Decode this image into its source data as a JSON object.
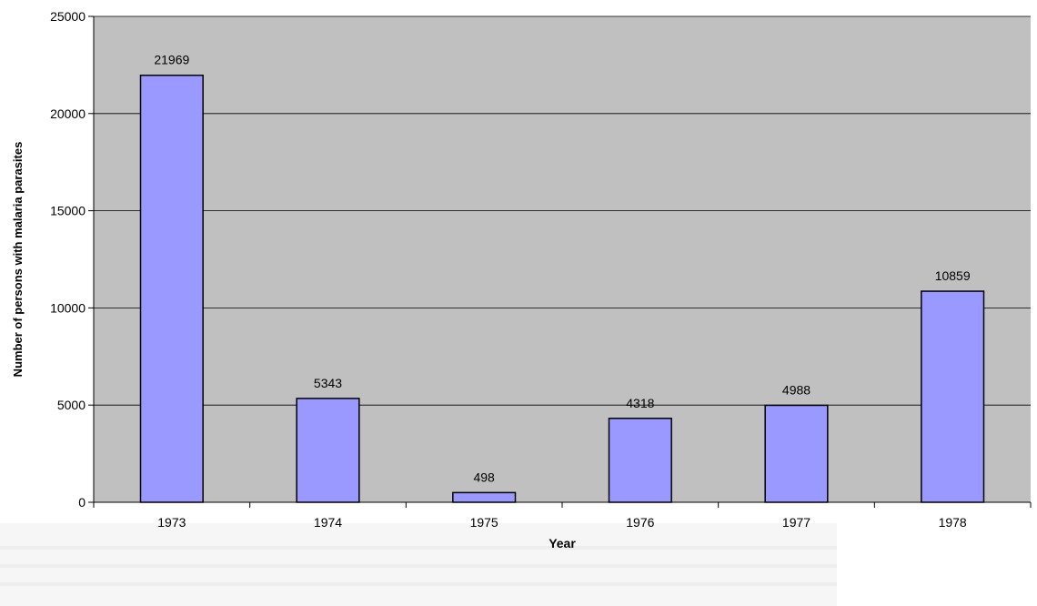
{
  "chart_data": {
    "type": "bar",
    "categories": [
      "1973",
      "1974",
      "1975",
      "1976",
      "1977",
      "1978"
    ],
    "values": [
      21969,
      5343,
      498,
      4318,
      4988,
      10859
    ],
    "data_labels": [
      "21969",
      "5343",
      "498",
      "4318",
      "4988",
      "10859"
    ],
    "title": "",
    "xlabel": "Year",
    "ylabel": "Number of persons with malaria parasites",
    "ylim": [
      0,
      25000
    ],
    "yticks": [
      0,
      5000,
      10000,
      15000,
      20000,
      25000
    ],
    "ytick_labels": [
      "0",
      "5000",
      "10000",
      "15000",
      "20000",
      "25000"
    ],
    "grid": true,
    "legend": "none",
    "colors": {
      "plot_background": "#c0c0c0",
      "bar_fill": "#9999ff",
      "bar_stroke": "#000000",
      "gridline": "#000000"
    }
  }
}
